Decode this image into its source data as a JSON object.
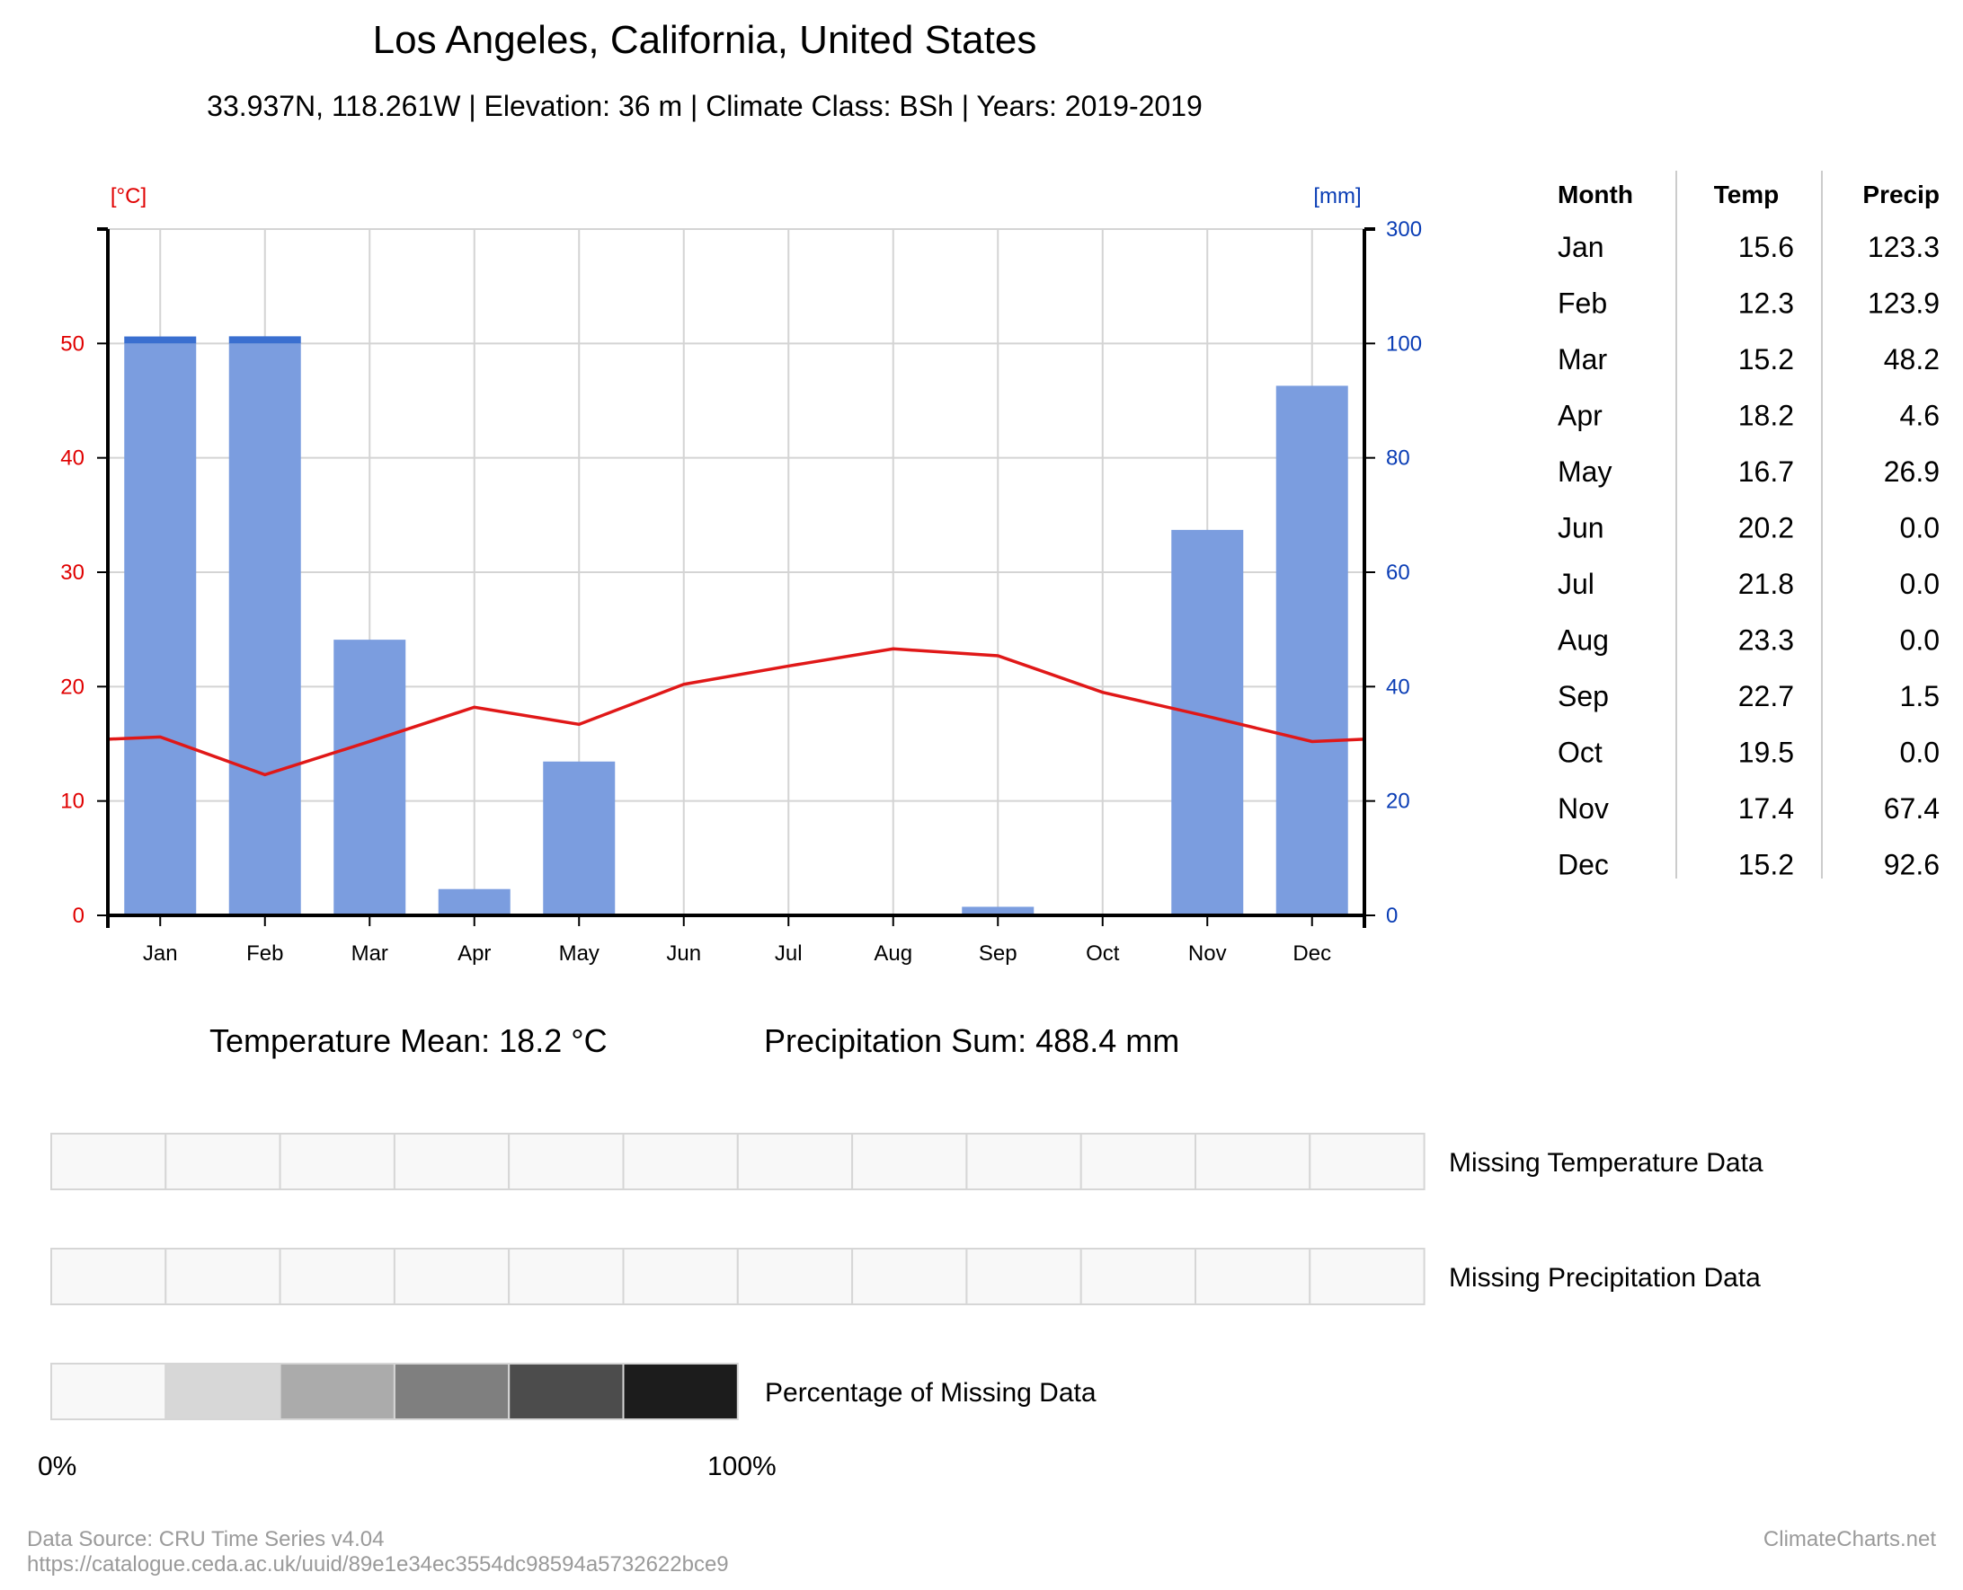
{
  "header": {
    "title": "Los Angeles, California, United States",
    "subtitle": "33.937N, 118.261W | Elevation: 36 m | Climate Class: BSh | Years: 2019-2019"
  },
  "chart_data": {
    "type": "bar",
    "categories": [
      "Jan",
      "Feb",
      "Mar",
      "Apr",
      "May",
      "Jun",
      "Jul",
      "Aug",
      "Sep",
      "Oct",
      "Nov",
      "Dec"
    ],
    "series": [
      {
        "type": "bar",
        "axis": "right",
        "values": [
          123.3,
          123.9,
          48.2,
          4.6,
          26.9,
          0.0,
          0.0,
          0.0,
          1.5,
          0.0,
          67.4,
          92.6
        ],
        "color": "#7b9ddf",
        "overflow_color": "#3a6fd0"
      },
      {
        "type": "line",
        "axis": "left",
        "values": [
          15.6,
          12.3,
          15.2,
          18.2,
          16.7,
          20.2,
          21.8,
          23.3,
          22.7,
          19.5,
          17.4,
          15.2
        ],
        "color": "#e01818"
      }
    ],
    "left_axis": {
      "label": "[°C]",
      "range": [
        0,
        60
      ],
      "ticks": [
        0,
        10,
        20,
        30,
        40,
        50
      ],
      "color": "#e00000"
    },
    "right_axis": {
      "label": "[mm]",
      "range": [
        0,
        300
      ],
      "ticks": [
        0,
        20,
        40,
        60,
        80,
        100,
        300
      ],
      "color": "#0a3db5",
      "scale_break_above": 100
    },
    "grid": true
  },
  "table": {
    "headers": [
      "Month",
      "Temp",
      "Precip"
    ],
    "rows": [
      [
        "Jan",
        "15.6",
        "123.3"
      ],
      [
        "Feb",
        "12.3",
        "123.9"
      ],
      [
        "Mar",
        "15.2",
        "48.2"
      ],
      [
        "Apr",
        "18.2",
        "4.6"
      ],
      [
        "May",
        "16.7",
        "26.9"
      ],
      [
        "Jun",
        "20.2",
        "0.0"
      ],
      [
        "Jul",
        "21.8",
        "0.0"
      ],
      [
        "Aug",
        "23.3",
        "0.0"
      ],
      [
        "Sep",
        "22.7",
        "1.5"
      ],
      [
        "Oct",
        "19.5",
        "0.0"
      ],
      [
        "Nov",
        "17.4",
        "67.4"
      ],
      [
        "Dec",
        "15.2",
        "92.6"
      ]
    ]
  },
  "summary": {
    "temp_mean": "Temperature Mean: 18.2 °C",
    "precip_sum": "Precipitation Sum: 488.4 mm"
  },
  "missing": {
    "temp_label": "Missing Temperature Data",
    "precip_label": "Missing Precipitation Data",
    "legend_label": "Percentage of Missing Data",
    "legend_min": "0%",
    "legend_max": "100%",
    "cell_color": "#f8f8f8",
    "legend_colors": [
      "#f8f8f8",
      "#d7d7d7",
      "#ababab",
      "#7f7f7f",
      "#4c4c4c",
      "#1c1c1c"
    ]
  },
  "footer": {
    "source": "Data Source: CRU Time Series v4.04",
    "url": "https://catalogue.ceda.ac.uk/uuid/89e1e34ec3554dc98594a5732622bce9",
    "brand": "ClimateCharts.net"
  }
}
